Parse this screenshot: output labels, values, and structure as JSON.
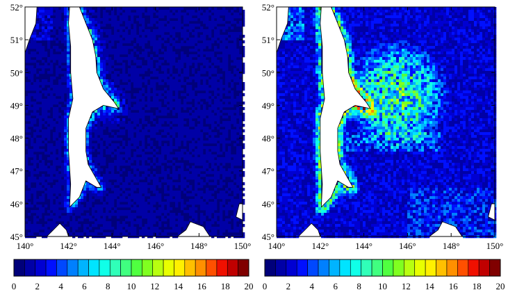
{
  "figure": {
    "panels": [
      {
        "id": "left",
        "lat_labels": [
          "45°",
          "46°",
          "47°",
          "48°",
          "49°",
          "50°",
          "51°",
          "52°"
        ],
        "lon_labels": [
          "140°",
          "142°",
          "144°",
          "146°",
          "148°",
          "150°"
        ],
        "colorbar_labels": [
          "0",
          "2",
          "4",
          "6",
          "8",
          "10",
          "12",
          "14",
          "16",
          "18",
          "20"
        ]
      },
      {
        "id": "right",
        "lat_labels": [
          "45°",
          "46°",
          "47°",
          "48°",
          "49°",
          "50°",
          "51°",
          "52°"
        ],
        "lon_labels": [
          "140°",
          "142°",
          "144°",
          "146°",
          "148°",
          "150°"
        ],
        "colorbar_labels": [
          "0",
          "2",
          "4",
          "6",
          "8",
          "10",
          "12",
          "14",
          "16",
          "18",
          "20"
        ]
      }
    ],
    "lat_range": [
      45,
      52
    ],
    "lon_range": [
      140,
      150
    ],
    "colorbar_range": [
      0,
      20
    ],
    "colorbar_colors": [
      "#00007a",
      "#0000a6",
      "#0000d2",
      "#0010ff",
      "#0048ff",
      "#0080ff",
      "#00b4ff",
      "#00e4ff",
      "#10ffe8",
      "#30ffb8",
      "#40ff80",
      "#50ff40",
      "#80ff20",
      "#b8ff10",
      "#e8ff00",
      "#fff000",
      "#ffc000",
      "#ff9000",
      "#ff5000",
      "#f01000",
      "#c00000",
      "#800000"
    ]
  }
}
